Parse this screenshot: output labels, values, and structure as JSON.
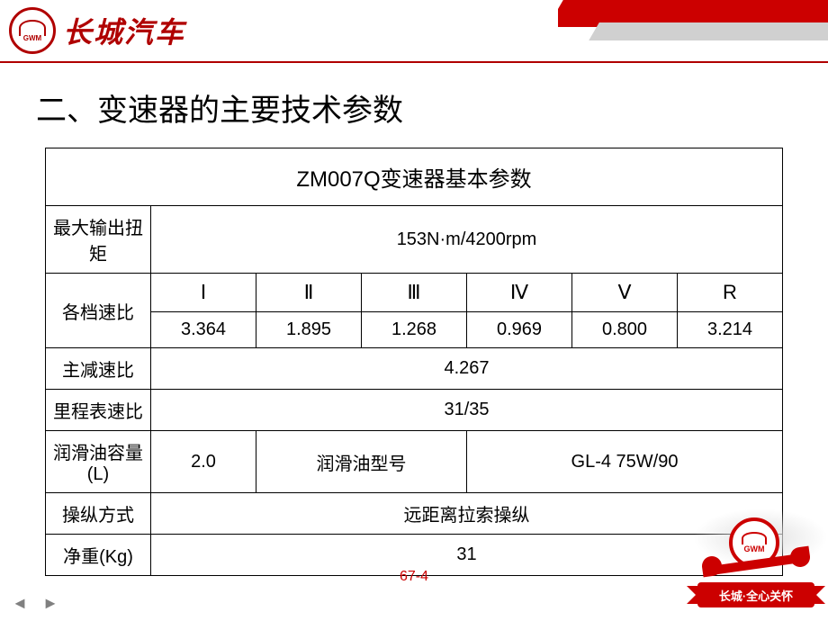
{
  "header": {
    "brand_text": "长城汽车",
    "logo_sub": "GWM",
    "brand_color": "#b00000"
  },
  "slide": {
    "title": "二、变速器的主要技术参数",
    "page_number": "67-4"
  },
  "table": {
    "title": "ZM007Q变速器基本参数",
    "columns_count": 7,
    "rows": {
      "max_torque": {
        "label": "最大输出扭矩",
        "value": "153N·m/4200rpm"
      },
      "gear_ratio": {
        "label": "各档速比",
        "headers": [
          "Ⅰ",
          "Ⅱ",
          "Ⅲ",
          "Ⅳ",
          "Ⅴ",
          "R"
        ],
        "values": [
          "3.364",
          "1.895",
          "1.268",
          "0.969",
          "0.800",
          "3.214"
        ]
      },
      "main_reduction": {
        "label": "主减速比",
        "value": "4.267"
      },
      "odometer_ratio": {
        "label": "里程表速比",
        "value": "31/35"
      },
      "oil_capacity": {
        "label": "润滑油容量(L)",
        "value": "2.0",
        "type_label": "润滑油型号",
        "type_value": "GL-4  75W/90"
      },
      "control_mode": {
        "label": "操纵方式",
        "value": "远距离拉索操纵"
      },
      "net_weight": {
        "label": "净重(Kg)",
        "value": "31"
      }
    },
    "border_color": "#000000",
    "font_size_title": 24,
    "font_size_body": 20
  },
  "badge": {
    "logo_sub": "GWM",
    "ribbon_text": "长城·全心关怀"
  },
  "nav": {
    "prev": "◄",
    "next": "►"
  }
}
